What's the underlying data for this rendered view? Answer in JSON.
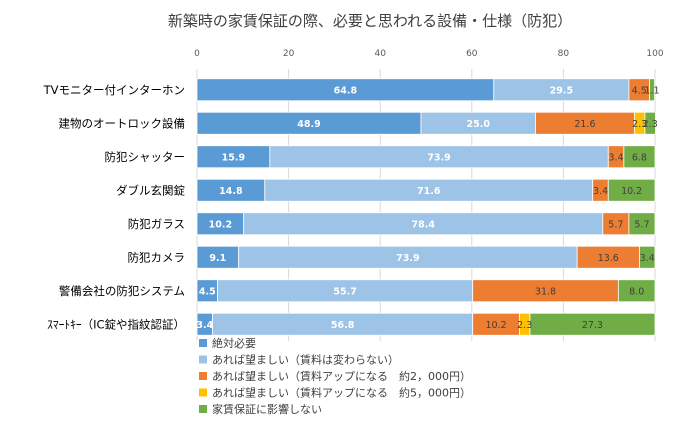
{
  "chart_data": {
    "type": "bar",
    "orientation": "horizontal",
    "stacked": true,
    "title": "新築時の家賃保証の際、必要と思われる設備・仕様（防犯）",
    "xlim": [
      0,
      100
    ],
    "x_ticks": [
      "0",
      "20",
      "40",
      "60",
      "80",
      "100"
    ],
    "tick_values": [
      0,
      20,
      40,
      60,
      80,
      100
    ],
    "grid": true,
    "legend_position": "bottom-left",
    "categories": [
      "TVモニター付インターホン",
      "建物のオートロック設備",
      "防犯シャッター",
      "ダブル玄関錠",
      "防犯ガラス",
      "防犯カメラ",
      "警備会社の防犯システム",
      "ｽﾏｰﾄｷｰ（IC錠や指紋認証）"
    ],
    "series": [
      {
        "name": "絶対必要",
        "color": "#5b9bd5",
        "label_color": "#ffffff",
        "values": [
          64.8,
          48.9,
          15.9,
          14.8,
          10.2,
          9.1,
          4.5,
          3.4
        ],
        "labels": [
          "64.8",
          "48.9",
          "15.9",
          "14.8",
          "10.2",
          "9.1",
          "4.5",
          "3.4"
        ]
      },
      {
        "name": "あれば望ましい（賃料は変わらない）",
        "color": "#9dc3e6",
        "label_color": "#ffffff",
        "values": [
          29.5,
          25.0,
          73.9,
          71.6,
          78.4,
          73.9,
          55.7,
          56.8
        ],
        "labels": [
          "29.5",
          "25.0",
          "73.9",
          "71.6",
          "78.4",
          "73.9",
          "55.7",
          "56.8"
        ]
      },
      {
        "name": "あれば望ましい（賃料アップになる　約2，000円）",
        "color": "#ed7d31",
        "label_color": "#404040",
        "values": [
          4.5,
          21.6,
          3.4,
          3.4,
          5.7,
          13.6,
          31.8,
          10.2
        ],
        "labels": [
          "4.5",
          "21.6",
          "3.4",
          "3.4",
          "5.7",
          "13.6",
          "31.8",
          "10.2"
        ]
      },
      {
        "name": "あれば望ましい（賃料アップになる　約5，000円）",
        "color": "#ffc000",
        "label_color": "#404040",
        "values": [
          0.0,
          2.3,
          0.0,
          0.0,
          0.0,
          0.0,
          0.0,
          2.3
        ],
        "labels": [
          "",
          "2.3",
          "",
          "",
          "",
          "",
          "",
          "2.3"
        ]
      },
      {
        "name": "家賃保証に影響しない",
        "color": "#70ad47",
        "label_color": "#404040",
        "values": [
          1.1,
          2.3,
          6.8,
          10.2,
          5.7,
          3.4,
          8.0,
          27.3
        ],
        "labels": [
          "1.1",
          "2.3",
          "6.8",
          "10.2",
          "5.7",
          "3.4",
          "8.0",
          "27.3"
        ]
      }
    ]
  }
}
